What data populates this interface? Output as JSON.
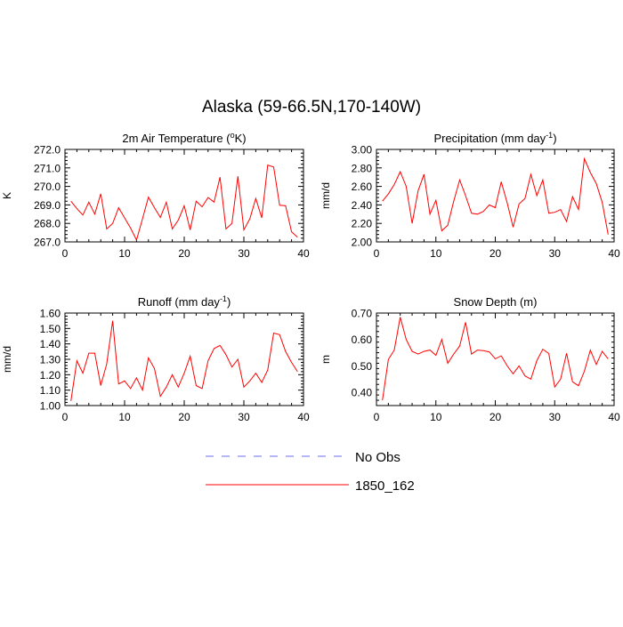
{
  "figure": {
    "title": "Alaska (59-66.5N,170-140W)"
  },
  "legend": {
    "entries": [
      {
        "name": "No Obs",
        "color": "#6b6bff",
        "dash": "dashed"
      },
      {
        "name": "1850_162",
        "color": "#ff0000",
        "dash": "solid"
      }
    ],
    "placement": "bottom-center"
  },
  "chart_data": [
    {
      "type": "line",
      "title": "2m Air Temperature (°K)",
      "title_base": "2m Air Temperature (",
      "title_sup": "o",
      "title_tail": "K)",
      "xlabel": "",
      "ylabel": "K",
      "xlim": [
        0,
        40
      ],
      "ylim": [
        267.0,
        272.0
      ],
      "xticks": [
        "0",
        "10",
        "20",
        "30",
        "40"
      ],
      "yticks": [
        "267.0",
        "268.0",
        "269.0",
        "270.0",
        "271.0",
        "272.0"
      ],
      "grid": false,
      "series": [
        {
          "name": "1850_162",
          "color": "#ff0000",
          "x": [
            1,
            2,
            3,
            4,
            5,
            6,
            7,
            8,
            9,
            10,
            11,
            12,
            13,
            14,
            15,
            16,
            17,
            18,
            19,
            20,
            21,
            22,
            23,
            24,
            25,
            26,
            27,
            28,
            29,
            30,
            31,
            32,
            33,
            34,
            35,
            36,
            37,
            38,
            39
          ],
          "values": [
            269.2,
            268.8,
            268.45,
            269.15,
            268.5,
            269.6,
            267.7,
            268.0,
            268.85,
            268.3,
            267.75,
            267.1,
            268.25,
            269.42,
            268.85,
            268.32,
            269.15,
            267.7,
            268.18,
            268.95,
            267.65,
            269.2,
            268.9,
            269.4,
            269.15,
            270.5,
            267.7,
            268.0,
            270.55,
            267.65,
            268.25,
            269.35,
            268.3,
            271.15,
            271.05,
            268.98,
            268.95,
            267.55,
            267.25
          ]
        }
      ]
    },
    {
      "type": "line",
      "title": "Precipitation (mm day-1)",
      "title_base": "Precipitation (mm day",
      "title_sup": "-1",
      "title_tail": ")",
      "xlabel": "",
      "ylabel": "mm/d",
      "xlim": [
        0,
        40
      ],
      "ylim": [
        2.0,
        3.0
      ],
      "xticks": [
        "0",
        "10",
        "20",
        "30",
        "40"
      ],
      "yticks": [
        "2.00",
        "2.20",
        "2.40",
        "2.60",
        "2.80",
        "3.00"
      ],
      "grid": false,
      "series": [
        {
          "name": "1850_162",
          "color": "#ff0000",
          "x": [
            1,
            2,
            3,
            4,
            5,
            6,
            7,
            8,
            9,
            10,
            11,
            12,
            13,
            14,
            15,
            16,
            17,
            18,
            19,
            20,
            21,
            22,
            23,
            24,
            25,
            26,
            27,
            28,
            29,
            30,
            31,
            32,
            33,
            34,
            35,
            36,
            37,
            38,
            39
          ],
          "values": [
            2.44,
            2.52,
            2.62,
            2.76,
            2.6,
            2.2,
            2.55,
            2.73,
            2.3,
            2.45,
            2.12,
            2.18,
            2.44,
            2.67,
            2.5,
            2.31,
            2.3,
            2.33,
            2.4,
            2.37,
            2.65,
            2.42,
            2.16,
            2.41,
            2.47,
            2.73,
            2.5,
            2.67,
            2.31,
            2.32,
            2.35,
            2.22,
            2.49,
            2.35,
            2.9,
            2.75,
            2.63,
            2.43,
            2.08
          ]
        }
      ]
    },
    {
      "type": "line",
      "title": "Runoff (mm day-1)",
      "title_base": "Runoff (mm day",
      "title_sup": "-1",
      "title_tail": ")",
      "xlabel": "",
      "ylabel": "mm/d",
      "xlim": [
        0,
        40
      ],
      "ylim": [
        1.0,
        1.6
      ],
      "xticks": [
        "0",
        "10",
        "20",
        "30",
        "40"
      ],
      "yticks": [
        "1.00",
        "1.10",
        "1.20",
        "1.30",
        "1.40",
        "1.50",
        "1.60"
      ],
      "grid": false,
      "series": [
        {
          "name": "1850_162",
          "color": "#ff0000",
          "x": [
            1,
            2,
            3,
            4,
            5,
            6,
            7,
            8,
            9,
            10,
            11,
            12,
            13,
            14,
            15,
            16,
            17,
            18,
            19,
            20,
            21,
            22,
            23,
            24,
            25,
            26,
            27,
            28,
            29,
            30,
            31,
            32,
            33,
            34,
            35,
            36,
            37,
            38,
            39
          ],
          "values": [
            1.03,
            1.29,
            1.21,
            1.34,
            1.34,
            1.13,
            1.27,
            1.55,
            1.14,
            1.16,
            1.11,
            1.18,
            1.1,
            1.31,
            1.24,
            1.06,
            1.12,
            1.2,
            1.12,
            1.21,
            1.32,
            1.13,
            1.11,
            1.29,
            1.37,
            1.39,
            1.33,
            1.25,
            1.3,
            1.12,
            1.16,
            1.21,
            1.15,
            1.23,
            1.47,
            1.46,
            1.35,
            1.28,
            1.22
          ]
        }
      ]
    },
    {
      "type": "line",
      "title": "Snow Depth (m)",
      "title_base": "Snow Depth (m)",
      "title_sup": "",
      "title_tail": "",
      "xlabel": "",
      "ylabel": "m",
      "xlim": [
        0,
        40
      ],
      "ylim": [
        0.35,
        0.7
      ],
      "xticks": [
        "0",
        "10",
        "20",
        "30",
        "40"
      ],
      "yticks": [
        "0.40",
        "0.50",
        "0.60",
        "0.70"
      ],
      "ytick_values": [
        0.4,
        0.5,
        0.6,
        0.7
      ],
      "grid": false,
      "series": [
        {
          "name": "1850_162",
          "color": "#ff0000",
          "x": [
            1,
            2,
            3,
            4,
            5,
            6,
            7,
            8,
            9,
            10,
            11,
            12,
            13,
            14,
            15,
            16,
            17,
            18,
            19,
            20,
            21,
            22,
            23,
            24,
            25,
            26,
            27,
            28,
            29,
            30,
            31,
            32,
            33,
            34,
            35,
            36,
            37,
            38,
            39
          ],
          "values": [
            0.37,
            0.525,
            0.56,
            0.685,
            0.6,
            0.555,
            0.545,
            0.555,
            0.56,
            0.54,
            0.6,
            0.51,
            0.545,
            0.575,
            0.665,
            0.545,
            0.56,
            0.558,
            0.553,
            0.527,
            0.538,
            0.5,
            0.47,
            0.5,
            0.462,
            0.45,
            0.52,
            0.563,
            0.547,
            0.42,
            0.45,
            0.548,
            0.44,
            0.425,
            0.48,
            0.56,
            0.505,
            0.555,
            0.527
          ]
        }
      ]
    }
  ]
}
